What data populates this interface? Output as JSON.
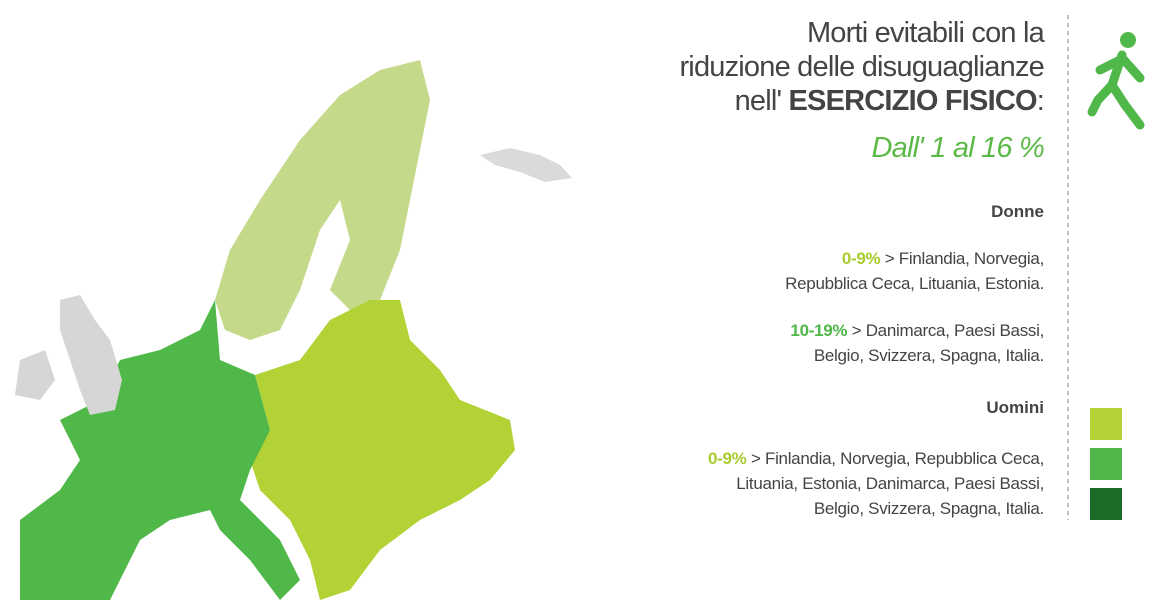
{
  "title": {
    "line1": "Morti evitabili con la",
    "line2": "riduzione delle disuguaglianze",
    "line3_prefix": "nell' ",
    "line3_bold": "ESERCIZIO FISICO",
    "line3_suffix": ":",
    "highlight": "Dall' 1 al 16 %"
  },
  "sections": [
    {
      "heading": "Donne",
      "groups": [
        {
          "range": "0-9%",
          "lines": [
            "> Finlandia, Norvegia,",
            "Repubblica Ceca, Lituania, Estonia."
          ]
        },
        {
          "range": "10-19%",
          "lines": [
            "> Danimarca, Paesi Bassi,",
            "Belgio, Svizzera, Spagna, Italia."
          ]
        }
      ]
    },
    {
      "heading": "Uomini",
      "groups": [
        {
          "range": "0-9%",
          "lines": [
            "> Finlandia, Norvegia, Repubblica Ceca,",
            "Lituania, Estonia, Danimarca, Paesi Bassi,",
            "Belgio, Svizzera, Spagna, Italia."
          ]
        }
      ]
    }
  ]
}
